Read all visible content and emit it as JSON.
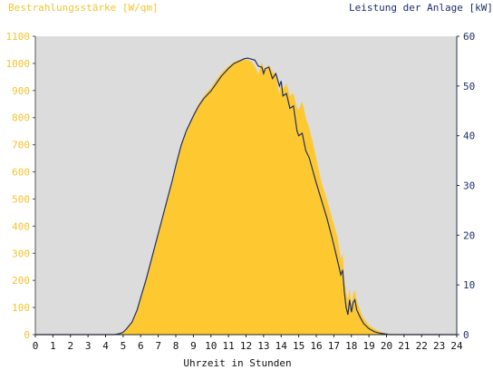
{
  "chart_data": {
    "type": "area",
    "title_left": "Bestrahlungsstärke [W/qm]",
    "title_right": "Leistung der Anlage [kW]",
    "xlabel": "Uhrzeit in Stunden",
    "xlim": [
      0,
      24
    ],
    "ylim_left": [
      0,
      1100
    ],
    "ylim_right": [
      0,
      60
    ],
    "x_ticks": [
      "0",
      "1",
      "2",
      "3",
      "4",
      "5",
      "6",
      "7",
      "8",
      "9",
      "10",
      "11",
      "12",
      "13",
      "14",
      "15",
      "16",
      "17",
      "18",
      "19",
      "20",
      "21",
      "22",
      "23",
      "24"
    ],
    "y_ticks_left": [
      "0",
      "100",
      "200",
      "300",
      "400",
      "500",
      "600",
      "700",
      "800",
      "900",
      "1000",
      "1100"
    ],
    "y_ticks_right": [
      "0",
      "10",
      "20",
      "30",
      "40",
      "50",
      "60"
    ],
    "grid": false,
    "colors": {
      "plot_background": "#dcdcdc",
      "irradiance_fill": "#fec930",
      "power_line": "#1e2f6a",
      "left_axis_text": "#f2c430",
      "right_axis_text": "#1e2f6a"
    },
    "series": [
      {
        "axis": "left",
        "style": "area",
        "x": [
          0,
          4.5,
          4.8,
          5.0,
          5.2,
          5.5,
          5.8,
          6.0,
          6.3,
          6.6,
          6.9,
          7.2,
          7.5,
          7.8,
          8.0,
          8.3,
          8.6,
          9.0,
          9.3,
          9.6,
          10.0,
          10.3,
          10.6,
          11.0,
          11.3,
          11.6,
          11.9,
          12.1,
          12.3,
          12.5,
          12.7,
          12.9,
          13.0,
          13.1,
          13.3,
          13.5,
          13.7,
          13.9,
          14.0,
          14.1,
          14.3,
          14.5,
          14.7,
          14.9,
          15.0,
          15.2,
          15.4,
          15.6,
          15.8,
          16.0,
          16.3,
          16.6,
          16.9,
          17.2,
          17.4,
          17.5,
          17.6,
          17.7,
          17.8,
          17.9,
          18.0,
          18.1,
          18.2,
          18.3,
          18.5,
          18.7,
          19.0,
          19.3,
          19.6,
          20.0,
          20.2,
          24
        ],
        "y": [
          0,
          0,
          3,
          8,
          20,
          45,
          90,
          135,
          200,
          270,
          350,
          420,
          500,
          570,
          630,
          700,
          750,
          810,
          850,
          880,
          910,
          940,
          965,
          990,
          1005,
          1012,
          1015,
          1012,
          1008,
          990,
          960,
          1005,
          985,
          975,
          995,
          970,
          960,
          885,
          935,
          905,
          925,
          880,
          890,
          835,
          830,
          860,
          800,
          760,
          710,
          650,
          560,
          500,
          430,
          360,
          280,
          300,
          200,
          160,
          130,
          170,
          110,
          150,
          165,
          125,
          90,
          60,
          35,
          22,
          12,
          5,
          0,
          0
        ]
      },
      {
        "axis": "right",
        "style": "line",
        "x": [
          0,
          4.5,
          4.8,
          5.0,
          5.2,
          5.5,
          5.8,
          6.0,
          6.3,
          6.6,
          6.9,
          7.2,
          7.5,
          7.8,
          8.0,
          8.3,
          8.6,
          9.0,
          9.3,
          9.6,
          10.0,
          10.3,
          10.6,
          11.0,
          11.3,
          11.6,
          11.9,
          12.1,
          12.3,
          12.5,
          12.7,
          12.9,
          13.0,
          13.1,
          13.3,
          13.5,
          13.7,
          13.9,
          14.0,
          14.1,
          14.3,
          14.5,
          14.7,
          14.9,
          15.0,
          15.2,
          15.4,
          15.6,
          15.8,
          16.0,
          16.3,
          16.6,
          16.9,
          17.2,
          17.4,
          17.5,
          17.6,
          17.7,
          17.8,
          17.9,
          18.0,
          18.1,
          18.2,
          18.3,
          18.5,
          18.7,
          19.0,
          19.3,
          19.6,
          20.0,
          20.2,
          24
        ],
        "y": [
          0,
          0,
          0.2,
          0.5,
          1.2,
          2.5,
          5,
          7.5,
          11,
          15,
          19,
          23,
          27,
          31,
          34,
          38,
          41,
          44,
          46,
          47.5,
          49,
          50.5,
          52,
          53.5,
          54.5,
          55,
          55.5,
          55.6,
          55.4,
          55.2,
          54,
          53.8,
          52.5,
          53.5,
          53.8,
          51.5,
          52.5,
          50,
          51,
          48,
          48.5,
          45.5,
          46,
          41,
          40,
          40.5,
          37,
          35.5,
          33,
          30.5,
          27,
          23.5,
          19.5,
          15,
          12,
          13,
          8.5,
          5.5,
          4,
          7,
          4.5,
          6.5,
          7,
          5,
          3.5,
          2.2,
          1.2,
          0.6,
          0.3,
          0.1,
          0,
          0
        ]
      }
    ]
  }
}
